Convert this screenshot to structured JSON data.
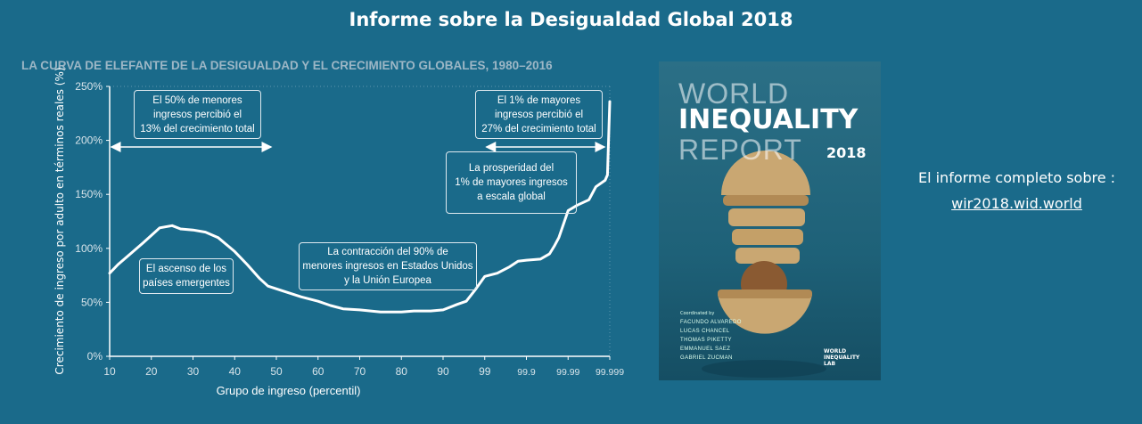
{
  "header": {
    "title": "Informe  sobre la Desigualdad Global 2018"
  },
  "chart_data": {
    "type": "line",
    "title": "LA CURVA DE ELEFANTE DE LA DESIGUALDAD Y EL CRECIMIENTO GLOBALES, 1980–2016",
    "xlabel": "Grupo de ingreso (percentil)",
    "ylabel": "Crecimiento de ingreso por adulto en términos reales (%)",
    "x_ticks": [
      "10",
      "20",
      "30",
      "40",
      "50",
      "60",
      "70",
      "80",
      "90",
      "99",
      "99.9",
      "99.99",
      "99.999"
    ],
    "x_tick_values": [
      10,
      20,
      30,
      40,
      50,
      60,
      70,
      80,
      90,
      99,
      99.9,
      99.99,
      99.999
    ],
    "y_ticks": [
      "0%",
      "50%",
      "100%",
      "150%",
      "200%",
      "250%"
    ],
    "ylim": [
      0,
      250
    ],
    "grid": false,
    "series": [
      {
        "name": "Crecimiento",
        "points": [
          [
            10,
            77
          ],
          [
            12,
            85
          ],
          [
            15,
            95
          ],
          [
            18,
            105
          ],
          [
            20,
            112
          ],
          [
            22,
            119
          ],
          [
            25,
            121
          ],
          [
            27,
            118
          ],
          [
            30,
            117
          ],
          [
            33,
            115
          ],
          [
            36,
            110
          ],
          [
            40,
            97
          ],
          [
            43,
            85
          ],
          [
            46,
            72
          ],
          [
            48,
            65
          ],
          [
            52,
            60
          ],
          [
            56,
            55
          ],
          [
            60,
            51
          ],
          [
            63,
            47
          ],
          [
            66,
            44
          ],
          [
            70,
            43
          ],
          [
            75,
            41
          ],
          [
            80,
            41
          ],
          [
            83,
            42
          ],
          [
            87,
            42
          ],
          [
            90,
            43
          ],
          [
            93,
            48
          ],
          [
            95,
            51
          ],
          [
            97,
            62
          ],
          [
            99,
            74
          ],
          [
            99.27,
            77
          ],
          [
            99.54,
            83
          ],
          [
            99.72,
            88
          ],
          [
            99.9,
            89
          ],
          [
            99.93,
            90
          ],
          [
            99.95,
            95
          ],
          [
            99.96,
            102
          ],
          [
            99.97,
            110
          ],
          [
            99.99,
            135
          ],
          [
            99.992,
            140
          ],
          [
            99.9945,
            145
          ],
          [
            99.996,
            157
          ],
          [
            99.998,
            163
          ],
          [
            99.9985,
            168
          ],
          [
            99.999,
            236
          ]
        ]
      }
    ],
    "annotations": [
      {
        "text": "El 50% de menores\ningresos percibió el\n13% del crecimiento total"
      },
      {
        "text": "El 1% de mayores\ningresos percibió el\n27% del crecimiento total"
      },
      {
        "text": "La prosperidad del\n1% de mayores ingresos\na escala global"
      },
      {
        "text": "La contracción del 90% de\nmenores ingresos en Estados Unidos\ny la Unión Europea"
      },
      {
        "text": "El ascenso de los\npaíses emergentes"
      }
    ],
    "ranges": [
      {
        "from": 10,
        "to": 50
      },
      {
        "from": 99,
        "to": 99.999
      }
    ]
  },
  "cover": {
    "line1": "WORLD",
    "line2": "INEQUALITY",
    "line3": "REPORT",
    "year": "2018",
    "coordinated_by": "Coordinated by",
    "authors": [
      "FACUNDO ALVAREDO",
      "LUCAS CHANCEL",
      "THOMAS PIKETTY",
      "EMMANUEL SAEZ",
      "GABRIEL ZUCMAN"
    ],
    "lab": "WORLD\nINEQUALITY\nLAB"
  },
  "side": {
    "text": "El informe completo sobre :",
    "link": "wir2018.wid.world"
  },
  "colors": {
    "background": "#1a6a8a",
    "subtitle": "#9db7c6",
    "line": "#ffffff"
  }
}
